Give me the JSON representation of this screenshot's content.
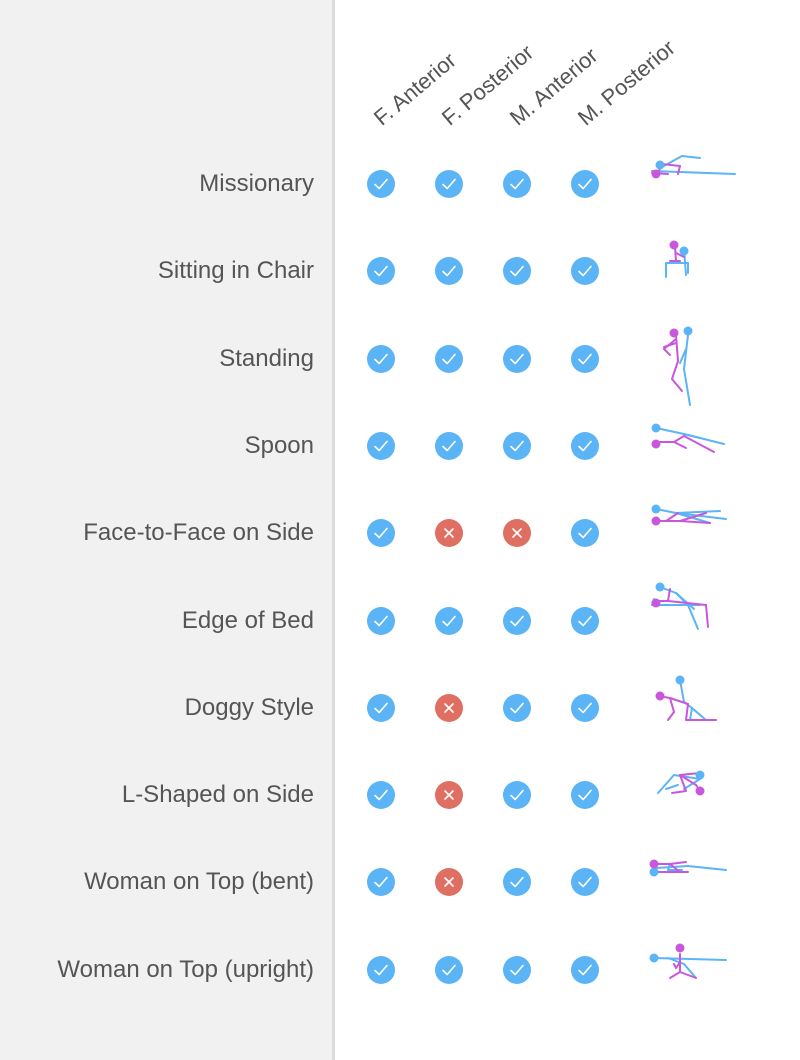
{
  "colors": {
    "check": "#5ab4f5",
    "cross": "#df6f62",
    "female": "#c957dd",
    "male": "#5ab4f5",
    "sidebar": "#f1f1f1",
    "text": "#555555"
  },
  "chart_data": {
    "type": "table",
    "columns": [
      "F. Anterior",
      "F. Posterior",
      "M. Anterior",
      "M. Posterior"
    ],
    "rows": [
      {
        "label": "Missionary",
        "values": [
          "check",
          "check",
          "check",
          "check"
        ],
        "figure_icon": "missionary-figure-icon"
      },
      {
        "label": "Sitting in Chair",
        "values": [
          "check",
          "check",
          "check",
          "check"
        ],
        "figure_icon": "sitting-chair-figure-icon"
      },
      {
        "label": "Standing",
        "values": [
          "check",
          "check",
          "check",
          "check"
        ],
        "figure_icon": "standing-figure-icon"
      },
      {
        "label": "Spoon",
        "values": [
          "check",
          "check",
          "check",
          "check"
        ],
        "figure_icon": "spoon-figure-icon"
      },
      {
        "label": "Face-to-Face on Side",
        "values": [
          "check",
          "cross",
          "cross",
          "check"
        ],
        "figure_icon": "face-to-face-figure-icon"
      },
      {
        "label": "Edge of Bed",
        "values": [
          "check",
          "check",
          "check",
          "check"
        ],
        "figure_icon": "edge-of-bed-figure-icon"
      },
      {
        "label": "Doggy Style",
        "values": [
          "check",
          "cross",
          "check",
          "check"
        ],
        "figure_icon": "doggy-style-figure-icon"
      },
      {
        "label": "L-Shaped on Side",
        "values": [
          "check",
          "cross",
          "check",
          "check"
        ],
        "figure_icon": "l-shaped-figure-icon"
      },
      {
        "label": "Woman on Top (bent)",
        "values": [
          "check",
          "cross",
          "check",
          "check"
        ],
        "figure_icon": "woman-top-bent-figure-icon"
      },
      {
        "label": "Woman on Top (upright)",
        "values": [
          "check",
          "check",
          "check",
          "check"
        ],
        "figure_icon": "woman-top-upright-figure-icon"
      }
    ]
  }
}
